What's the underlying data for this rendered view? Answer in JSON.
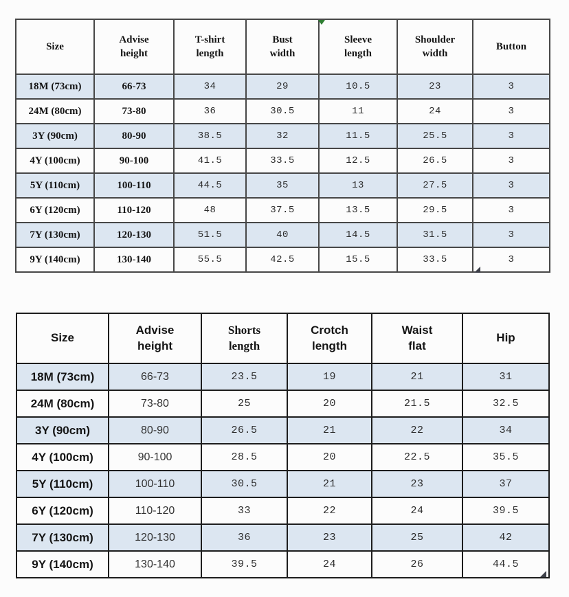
{
  "colors": {
    "page_bg": "#fcfcfc",
    "row_shade": "#dce6f1",
    "table1_line": "#474747",
    "table2_line": "#1d1d1d",
    "header_text": "#151515",
    "value_text": "#2d2d2d",
    "comment_marker_green": "#2e7d32",
    "artifact_triangle": "#3d4049"
  },
  "icons": {
    "comment_marker": "green-corner-triangle",
    "corner_artifact_top_table": "dark-corner-triangle",
    "corner_artifact_bottom_table": "dark-corner-triangle"
  },
  "tables": {
    "tshirt": {
      "columns": [
        "Size",
        "Advise\nheight",
        "T-shirt\nlength",
        "Bust\nwidth",
        "Sleeve\nlength",
        "Shoulder\nwidth",
        "Button"
      ],
      "rows": [
        {
          "cells": [
            "18M (73cm)",
            "66-73",
            "34",
            "29",
            "10.5",
            "23",
            "3"
          ]
        },
        {
          "cells": [
            "24M (80cm)",
            "73-80",
            "36",
            "30.5",
            "11",
            "24",
            "3"
          ]
        },
        {
          "cells": [
            "3Y (90cm)",
            "80-90",
            "38.5",
            "32",
            "11.5",
            "25.5",
            "3"
          ]
        },
        {
          "cells": [
            "4Y (100cm)",
            "90-100",
            "41.5",
            "33.5",
            "12.5",
            "26.5",
            "3"
          ]
        },
        {
          "cells": [
            "5Y (110cm)",
            "100-110",
            "44.5",
            "35",
            "13",
            "27.5",
            "3"
          ]
        },
        {
          "cells": [
            "6Y (120cm)",
            "110-120",
            "48",
            "37.5",
            "13.5",
            "29.5",
            "3"
          ]
        },
        {
          "cells": [
            "7Y (130cm)",
            "120-130",
            "51.5",
            "40",
            "14.5",
            "31.5",
            "3"
          ]
        },
        {
          "cells": [
            "9Y (140cm)",
            "130-140",
            "55.5",
            "42.5",
            "15.5",
            "33.5",
            "3"
          ]
        }
      ]
    },
    "shorts": {
      "columns": [
        "Size",
        "Advise\nheight",
        "Shorts\nlength",
        "Crotch\nlength",
        "Waist\nflat",
        "Hip"
      ],
      "rows": [
        {
          "cells": [
            "18M (73cm)",
            "66-73",
            "23.5",
            "19",
            "21",
            "31"
          ]
        },
        {
          "cells": [
            "24M (80cm)",
            "73-80",
            "25",
            "20",
            "21.5",
            "32.5"
          ]
        },
        {
          "cells": [
            "3Y (90cm)",
            "80-90",
            "26.5",
            "21",
            "22",
            "34"
          ]
        },
        {
          "cells": [
            "4Y (100cm)",
            "90-100",
            "28.5",
            "20",
            "22.5",
            "35.5"
          ]
        },
        {
          "cells": [
            "5Y (110cm)",
            "100-110",
            "30.5",
            "21",
            "23",
            "37"
          ]
        },
        {
          "cells": [
            "6Y (120cm)",
            "110-120",
            "33",
            "22",
            "24",
            "39.5"
          ]
        },
        {
          "cells": [
            "7Y (130cm)",
            "120-130",
            "36",
            "23",
            "25",
            "42"
          ]
        },
        {
          "cells": [
            "9Y (140cm)",
            "130-140",
            "39.5",
            "24",
            "26",
            "44.5"
          ]
        }
      ]
    }
  }
}
